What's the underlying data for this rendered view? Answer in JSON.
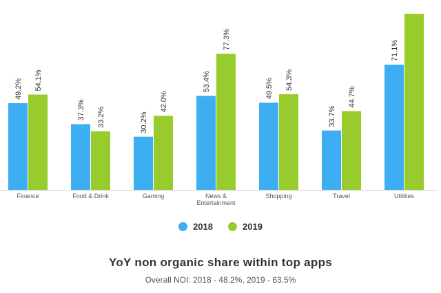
{
  "chart_data": {
    "type": "bar",
    "title": "YoY non organic share within top apps",
    "subtitle": "Overall NOI:  2018 - 48.2%, 2019 - 63.5%",
    "xlabel": "",
    "ylabel": "",
    "ylim": [
      0,
      100
    ],
    "grid": false,
    "legend_position": "bottom-center",
    "categories": [
      "Finance",
      "Food & Drink",
      "Gaming",
      "News & Entertainment",
      "Shopping",
      "Travel",
      "Utilities"
    ],
    "category_lines": [
      [
        "Finance"
      ],
      [
        "Food & Drink"
      ],
      [
        "Gaming"
      ],
      [
        "News &",
        "Entertainment"
      ],
      [
        "Shopping"
      ],
      [
        "Travel"
      ],
      [
        "Utilities"
      ]
    ],
    "series": [
      {
        "name": "2018",
        "color": "#3daef2",
        "values": [
          49.2,
          37.3,
          30.2,
          53.4,
          49.5,
          33.7,
          71.1
        ],
        "labels": [
          "49.2%",
          "37.3%",
          "30.2%",
          "53.4%",
          "49.5%",
          "33.7%",
          "71.1%"
        ]
      },
      {
        "name": "2019",
        "color": "#97cc2c",
        "values": [
          54.1,
          33.2,
          42.0,
          77.3,
          54.3,
          44.7,
          100
        ],
        "labels": [
          "54.1%",
          "33.2%",
          "42.0%",
          "77.3%",
          "54.3%",
          "44.7%",
          null
        ]
      }
    ]
  }
}
